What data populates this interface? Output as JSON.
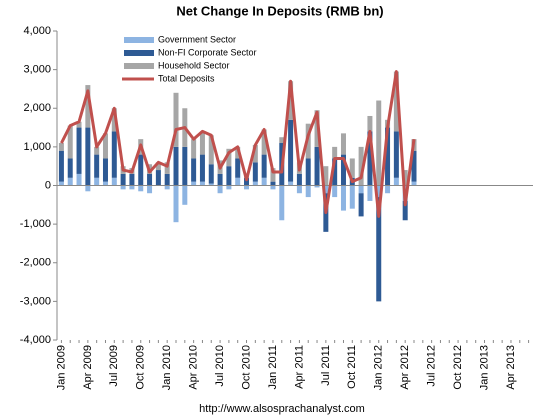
{
  "chart_data": {
    "type": "bar",
    "stacked": true,
    "title": "Net Change In Deposits (RMB bn)",
    "footer": "http://www.alsosprachanalyst.com",
    "categories": [
      "Jan 2009",
      null,
      null,
      "Apr 2009",
      null,
      null,
      "Jul 2009",
      null,
      null,
      "Oct 2009",
      null,
      null,
      "Jan 2010",
      null,
      null,
      "Apr 2010",
      null,
      null,
      "Jul 2010",
      null,
      null,
      "Oct 2010",
      null,
      null,
      "Jan 2011",
      null,
      null,
      "Apr 2011",
      null,
      null,
      "Jul 2011",
      null,
      null,
      "Oct 2011",
      null,
      null,
      "Jan 2012",
      null,
      null,
      "Apr 2012",
      null,
      null,
      "Jul 2012",
      null,
      null,
      "Oct 2012",
      null,
      null,
      "Jan 2013",
      null,
      null,
      "Apr 2013",
      null,
      null
    ],
    "series": [
      {
        "name": "Government Sector",
        "type": "bar",
        "color": "#8db4e2",
        "values": [
          100,
          200,
          300,
          -150,
          200,
          100,
          200,
          -100,
          -100,
          -150,
          -200,
          0,
          -100,
          -950,
          -500,
          100,
          100,
          50,
          -200,
          -100,
          200,
          -100,
          100,
          200,
          -100,
          -900,
          100,
          -200,
          -300,
          -50,
          -200,
          -300,
          -650,
          -600,
          -200,
          -400,
          -300,
          -200,
          200,
          -400,
          100,
          null,
          null,
          null,
          null,
          null,
          null,
          null,
          null,
          null,
          null,
          null,
          null,
          null
        ]
      },
      {
        "name": "Non-FI Corporate Sector",
        "type": "bar",
        "color": "#2e5a94",
        "values": [
          800,
          500,
          1200,
          1500,
          600,
          600,
          1200,
          300,
          300,
          800,
          300,
          400,
          300,
          1000,
          1000,
          600,
          700,
          500,
          300,
          500,
          500,
          200,
          500,
          600,
          100,
          1100,
          1600,
          300,
          700,
          1000,
          -1000,
          700,
          800,
          200,
          -600,
          1400,
          -2700,
          1500,
          1200,
          -500,
          800,
          null,
          null,
          null,
          null,
          null,
          null,
          null,
          null,
          null,
          null,
          null,
          null,
          null
        ]
      },
      {
        "name": "Household Sector",
        "type": "bar",
        "color": "#a6a6a6",
        "values": [
          200,
          850,
          150,
          1100,
          200,
          650,
          600,
          200,
          150,
          400,
          250,
          200,
          300,
          1400,
          1000,
          500,
          600,
          750,
          350,
          450,
          300,
          50,
          450,
          650,
          350,
          150,
          1000,
          300,
          900,
          950,
          500,
          300,
          550,
          500,
          1000,
          400,
          2200,
          200,
          1550,
          400,
          300,
          null,
          null,
          null,
          null,
          null,
          null,
          null,
          null,
          null,
          null,
          null,
          null,
          null
        ]
      },
      {
        "name": "Total Deposits",
        "type": "line",
        "color": "#c0504d",
        "values": [
          1100,
          1550,
          1650,
          2450,
          1000,
          1350,
          2000,
          400,
          350,
          1050,
          350,
          600,
          500,
          1450,
          1500,
          1200,
          1400,
          1300,
          450,
          850,
          1000,
          150,
          1050,
          1450,
          350,
          350,
          2700,
          400,
          1300,
          1900,
          -700,
          700,
          700,
          100,
          200,
          1400,
          -800,
          1500,
          2950,
          -500,
          1200,
          null,
          null,
          null,
          null,
          null,
          null,
          null,
          null,
          null,
          null,
          null,
          null,
          null
        ]
      }
    ],
    "ylim": [
      -4000,
      4000
    ],
    "yticks": [
      {
        "value": -4000,
        "label": "-4,000"
      },
      {
        "value": -3000,
        "label": "-3,000"
      },
      {
        "value": -2000,
        "label": "-2,000"
      },
      {
        "value": -1000,
        "label": "-1,000"
      },
      0,
      {
        "value": 1000,
        "label": "1,000"
      },
      {
        "value": 2000,
        "label": "2,000"
      },
      {
        "value": 3000,
        "label": "3,000"
      },
      {
        "value": 4000,
        "label": "4,000"
      }
    ],
    "legend": "top-left"
  }
}
